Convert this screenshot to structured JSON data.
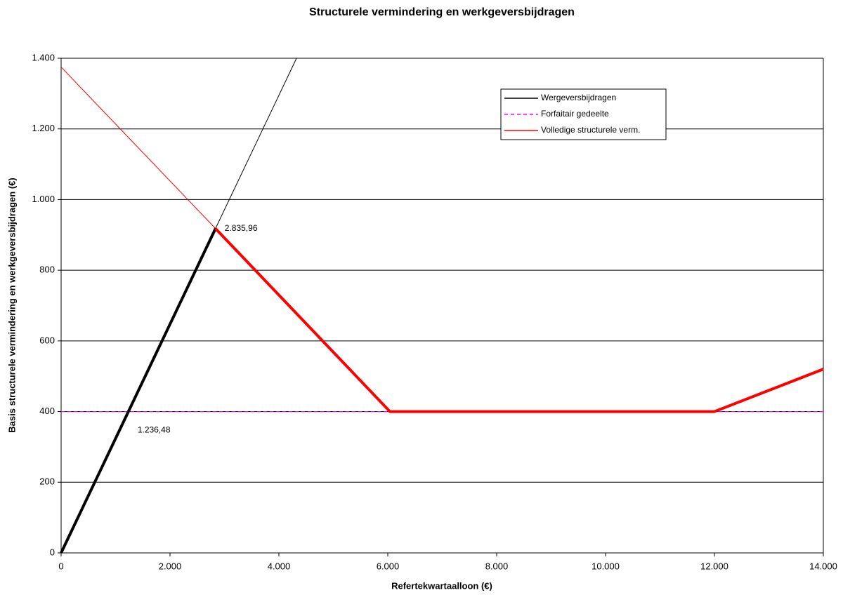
{
  "chart_data": {
    "type": "line",
    "title": "Structurele vermindering en werkgeversbijdragen",
    "x_label": "Refertekwartaalloon (€)",
    "y_label": "Basis structurele vermindering en werkgeversbijdragen (€)",
    "xlim": [
      0,
      14000
    ],
    "ylim": [
      0,
      1400
    ],
    "xticks": [
      0,
      {
        "value": 2000,
        "label": "2.000"
      },
      {
        "value": 4000,
        "label": "4.000"
      },
      {
        "value": 6000,
        "label": "6.000"
      },
      {
        "value": 8000,
        "label": "8.000"
      },
      {
        "value": 10000,
        "label": "10.000"
      },
      {
        "value": 12000,
        "label": "12.000"
      },
      {
        "value": 14000,
        "label": "14.000"
      }
    ],
    "yticks": [
      0,
      200,
      400,
      600,
      800,
      {
        "value": 1000,
        "label": "1.000"
      },
      {
        "value": 1200,
        "label": "1.200"
      },
      {
        "value": 1400,
        "label": "1.400"
      }
    ],
    "grid": true,
    "series": [
      {
        "name": "Wergeversbijdragen",
        "color": "#000000",
        "width": 1,
        "dashed": false,
        "x": [
          0,
          4324
        ],
        "values": [
          0,
          1400
        ]
      },
      {
        "name": "Forfaitair gedeelte",
        "color": "#ff00ff",
        "width": 1,
        "dashed": true,
        "x": [
          0,
          14000
        ],
        "values": [
          400,
          400
        ]
      },
      {
        "name": "Volledige structurele verm.",
        "color": "#ff0000",
        "width": 1,
        "dashed": false,
        "x": [
          0,
          2835.96,
          6040,
          12000,
          14000
        ],
        "values": [
          1375,
          918,
          400,
          400,
          520
        ]
      },
      {
        "color": "#000000",
        "width": 4,
        "dashed": false,
        "x": [
          0,
          2835.96
        ],
        "values": [
          0,
          918
        ]
      },
      {
        "color": "#ff0000",
        "width": 4,
        "dashed": false,
        "x": [
          2835.96,
          6040,
          12000,
          14000
        ],
        "values": [
          918,
          400,
          400,
          520
        ]
      }
    ],
    "annotations": [
      {
        "text": "2.835,96",
        "x": 2835.96,
        "y": 918
      },
      {
        "text": "1.236,48",
        "x": 1236.48,
        "y": 400
      }
    ]
  }
}
